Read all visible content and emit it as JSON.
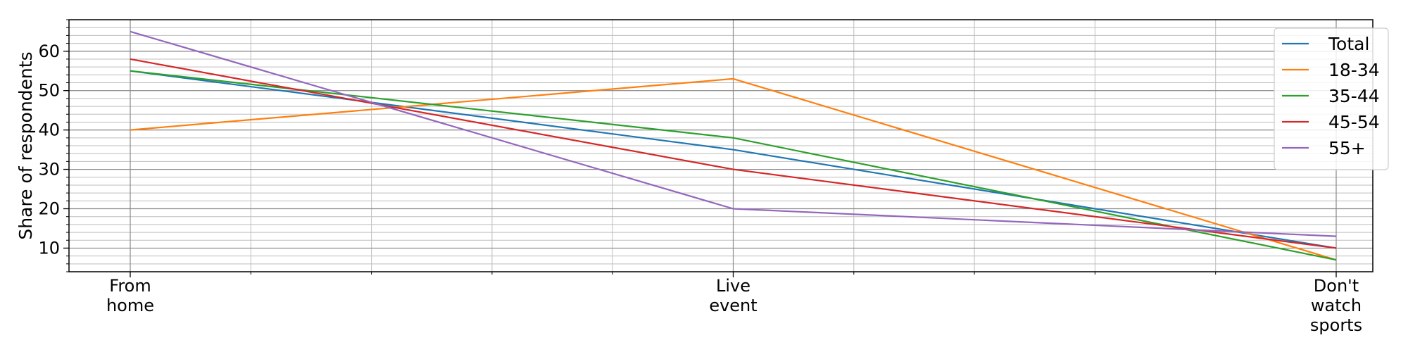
{
  "chart_data": {
    "type": "line",
    "categories": [
      [
        "From",
        "home"
      ],
      [
        "Live",
        "event"
      ],
      [
        "Don't",
        "watch",
        "sports"
      ]
    ],
    "xlabel": "",
    "ylabel": "Share of respondents",
    "ylim": [
      4,
      68
    ],
    "yticks": [
      10,
      20,
      30,
      40,
      50,
      60
    ],
    "minor_step": 2,
    "x_minor_per_segment": 5,
    "grid": true,
    "legend_position": "top-right",
    "series": [
      {
        "name": "Total",
        "color": "#1f77b4",
        "values": [
          55,
          35,
          10
        ]
      },
      {
        "name": "18-34",
        "color": "#ff7f0e",
        "values": [
          40,
          53,
          7
        ]
      },
      {
        "name": "35-44",
        "color": "#2ca02c",
        "values": [
          55,
          38,
          7
        ]
      },
      {
        "name": "45-54",
        "color": "#d62728",
        "values": [
          58,
          30,
          10
        ]
      },
      {
        "name": "55+",
        "color": "#9467bd",
        "values": [
          65,
          20,
          13
        ]
      }
    ]
  }
}
